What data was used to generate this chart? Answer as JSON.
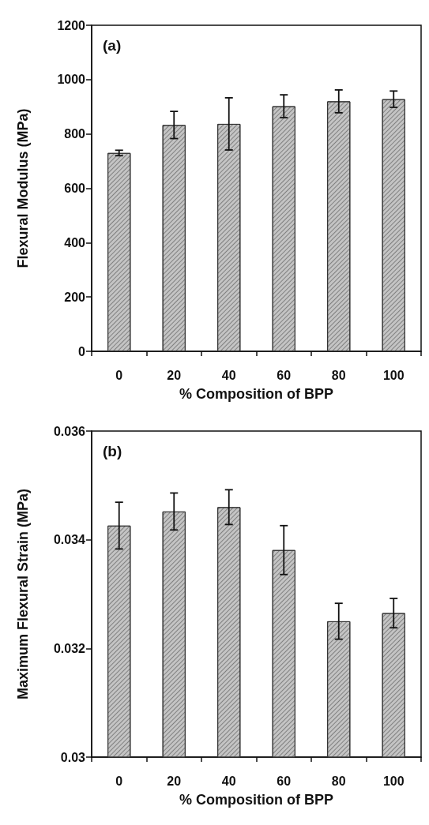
{
  "chart_data": [
    {
      "type": "bar",
      "xlabel": "% Composition of BPP",
      "ylabel": "Flexural Modulus (MPa)",
      "annotations": [
        "(a)"
      ],
      "categories": [
        "0",
        "20",
        "40",
        "60",
        "80",
        "100"
      ],
      "values": [
        730,
        833,
        837,
        902,
        920,
        928
      ],
      "errors": [
        10,
        50,
        96,
        42,
        42,
        30
      ],
      "color": "#c4c4c4",
      "ylim": [
        0,
        1200
      ],
      "yticks": [
        0,
        200,
        400,
        600,
        800,
        1000,
        1200
      ],
      "grid": false
    },
    {
      "type": "bar",
      "xlabel": "% Composition of BPP",
      "ylabel": "Maximum Flexural Strain (MPa)",
      "annotations": [
        "(b)"
      ],
      "categories": [
        "0",
        "20",
        "40",
        "60",
        "80",
        "100"
      ],
      "values": [
        0.03426,
        0.03452,
        0.0346,
        0.03381,
        0.0325,
        0.03265
      ],
      "errors": [
        0.00043,
        0.00034,
        0.00032,
        0.00045,
        0.00033,
        0.00027
      ],
      "color": "#c4c4c4",
      "ylim": [
        0.03,
        0.036
      ],
      "yticks": [
        0.03,
        0.032,
        0.034,
        0.036
      ],
      "grid": false
    }
  ]
}
